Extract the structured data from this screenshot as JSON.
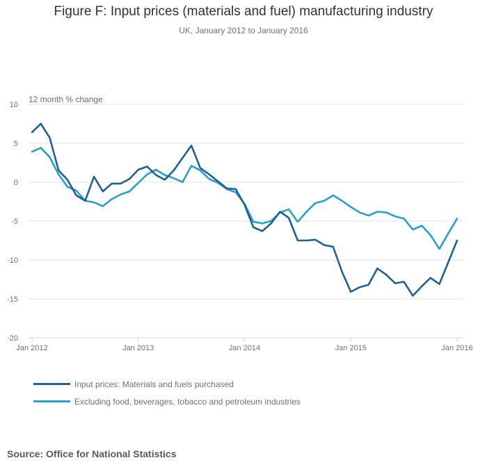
{
  "chart_data": {
    "type": "line",
    "title": "Figure F: Input prices (materials and fuel) manufacturing industry",
    "subtitle": "UK, January 2012 to January 2016",
    "xlabel": "",
    "ylabel": "12 month % change",
    "ylim": [
      -20,
      10
    ],
    "yticks": [
      10,
      5,
      0,
      -5,
      -10,
      -15,
      -20
    ],
    "xticks": [
      "Jan 2012",
      "Jan 2013",
      "Jan 2014",
      "Jan 2015",
      "Jan 2016"
    ],
    "x_start": "Jan 2012",
    "x_end": "Jan 2016",
    "x_frequency": "monthly",
    "grid": true,
    "legend_position": "bottom-left",
    "series": [
      {
        "name": "Input prices: Materials and fuels purchased",
        "color": "#206095",
        "values": [
          6.4,
          7.5,
          5.7,
          1.5,
          0.3,
          -1.7,
          -2.4,
          0.7,
          -1.2,
          -0.2,
          -0.2,
          0.4,
          1.6,
          2.0,
          0.9,
          0.3,
          1.5,
          3.1,
          4.7,
          1.8,
          1.0,
          0.1,
          -0.8,
          -0.9,
          -2.9,
          -5.8,
          -6.3,
          -5.3,
          -3.8,
          -4.6,
          -7.5,
          -7.5,
          -7.4,
          -8.1,
          -8.3,
          -11.5,
          -14.1,
          -13.5,
          -13.2,
          -11.1,
          -11.9,
          -13.0,
          -12.8,
          -14.6,
          -13.4,
          -12.3,
          -13.1,
          -10.3,
          -7.5
        ]
      },
      {
        "name": "Excluding food, beverages, tobacco and petroleum industries",
        "color": "#27a0cc",
        "values": [
          3.9,
          4.4,
          3.2,
          1.0,
          -0.6,
          -1.1,
          -2.4,
          -2.6,
          -3.1,
          -2.2,
          -1.6,
          -1.2,
          -0.1,
          1.0,
          1.6,
          0.9,
          0.5,
          0.0,
          2.1,
          1.5,
          0.4,
          -0.1,
          -0.9,
          -1.3,
          -2.8,
          -5.1,
          -5.3,
          -5.0,
          -3.9,
          -3.5,
          -5.1,
          -3.8,
          -2.7,
          -2.4,
          -1.7,
          -2.4,
          -3.2,
          -3.9,
          -4.3,
          -3.8,
          -3.9,
          -4.4,
          -4.7,
          -6.1,
          -5.6,
          -6.8,
          -8.6,
          -6.6,
          -4.7
        ]
      }
    ]
  },
  "source": "Source: Office for National Statistics"
}
